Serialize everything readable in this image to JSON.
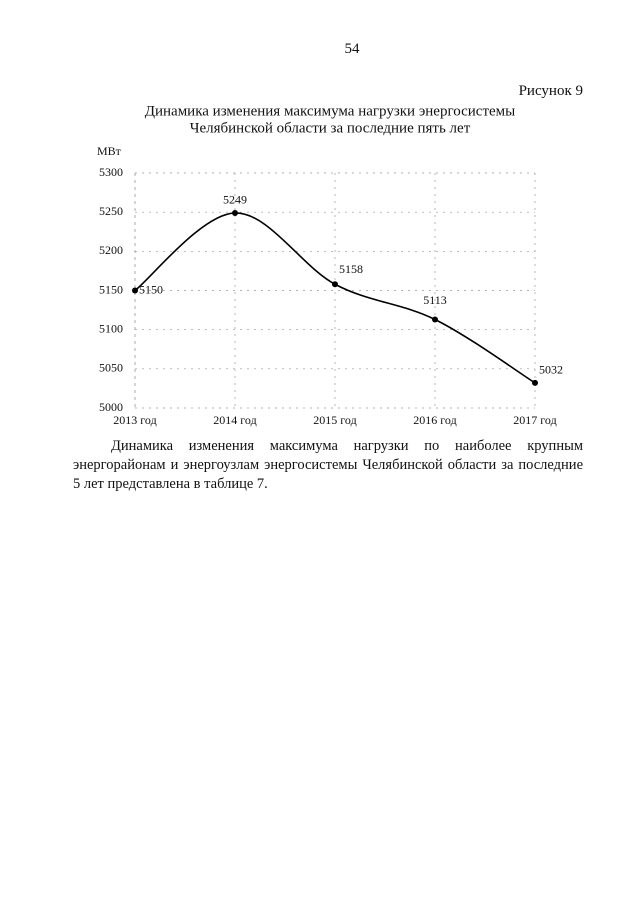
{
  "page_number": "54",
  "figure_label": "Рисунок 9",
  "chart_data": {
    "type": "line",
    "title": [
      "Динамика изменения максимума нагрузки энергосистемы",
      "Челябинской области за последние пять лет"
    ],
    "y_label": "МВт",
    "categories": [
      "2013 год",
      "2014 год",
      "2015 год",
      "2016 год",
      "2017 год"
    ],
    "values": [
      5150,
      5249,
      5158,
      5113,
      5032
    ],
    "color": "#000000",
    "ylim": [
      5000,
      5300
    ],
    "yticks": [
      5000,
      5050,
      5100,
      5150,
      5200,
      5250,
      5300
    ],
    "grid": true,
    "markers": true,
    "smooth": true
  },
  "paragraph": "Динамика изменения максимума нагрузки по наиболее крупным энергорайонам и энергоузлам энергосистемы Челябинской области за последние 5 лет представлена в таблице 7."
}
